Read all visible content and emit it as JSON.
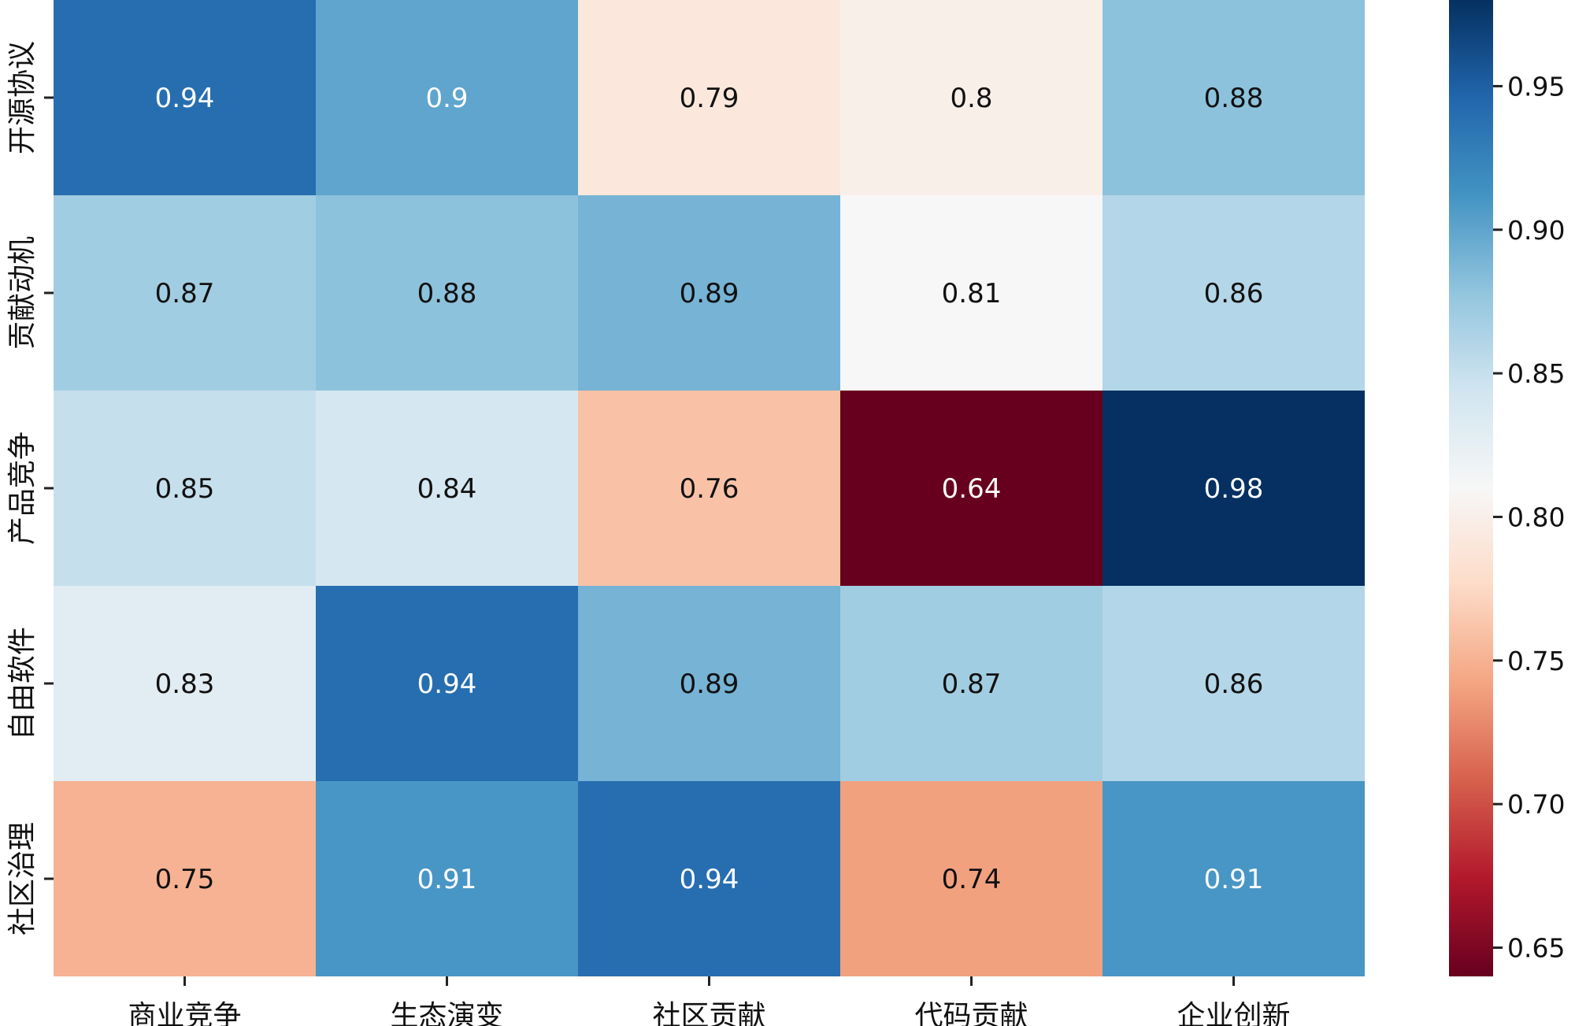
{
  "chart_data": {
    "type": "heatmap",
    "title": "",
    "xlabel": "",
    "ylabel": "",
    "x_categories": [
      "商业竞争",
      "生态演变",
      "社区贡献",
      "代码贡献",
      "企业创新"
    ],
    "y_categories": [
      "开源协议",
      "贡献动机",
      "产品竞争",
      "自由软件",
      "社区治理"
    ],
    "values": [
      [
        0.94,
        0.9,
        0.79,
        0.8,
        0.88
      ],
      [
        0.87,
        0.88,
        0.89,
        0.81,
        0.86
      ],
      [
        0.85,
        0.84,
        0.76,
        0.64,
        0.98
      ],
      [
        0.83,
        0.94,
        0.89,
        0.87,
        0.86
      ],
      [
        0.75,
        0.91,
        0.94,
        0.74,
        0.91
      ]
    ],
    "value_labels": [
      [
        "0.94",
        "0.9",
        "0.79",
        "0.8",
        "0.88"
      ],
      [
        "0.87",
        "0.88",
        "0.89",
        "0.81",
        "0.86"
      ],
      [
        "0.85",
        "0.84",
        "0.76",
        "0.64",
        "0.98"
      ],
      [
        "0.83",
        "0.94",
        "0.89",
        "0.87",
        "0.86"
      ],
      [
        "0.75",
        "0.91",
        "0.94",
        "0.74",
        "0.91"
      ]
    ],
    "colormap": "RdBu",
    "colorbar": {
      "range": [
        0.64,
        0.98
      ],
      "ticks": [
        0.65,
        0.7,
        0.75,
        0.8,
        0.85,
        0.9,
        0.95
      ],
      "tick_labels": [
        "0.65",
        "0.70",
        "0.75",
        "0.80",
        "0.85",
        "0.90",
        "0.95"
      ]
    },
    "colorscale_stops": [
      "#67001f",
      "#b2182b",
      "#d6604d",
      "#f4a582",
      "#fddbc7",
      "#f7f7f7",
      "#d1e5f0",
      "#92c5de",
      "#4393c3",
      "#2166ac",
      "#053061"
    ],
    "grid": false,
    "legend": "colorbar-right"
  }
}
